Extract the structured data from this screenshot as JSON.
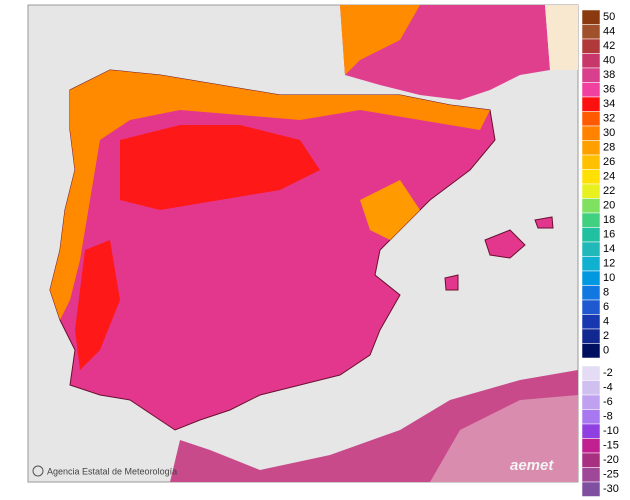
{
  "map": {
    "credit": "Agencia Estatal de Meteorología",
    "logo": "aemet",
    "legend": [
      {
        "value": 50,
        "color": "#8b3a10"
      },
      {
        "value": 44,
        "color": "#a0502a"
      },
      {
        "value": 42,
        "color": "#b03a3a"
      },
      {
        "value": 40,
        "color": "#c8376a"
      },
      {
        "value": 38,
        "color": "#d83f8c"
      },
      {
        "value": 36,
        "color": "#f040a0"
      },
      {
        "value": 34,
        "color": "#ff1010"
      },
      {
        "value": 32,
        "color": "#ff5a00"
      },
      {
        "value": 30,
        "color": "#ff8200"
      },
      {
        "value": 28,
        "color": "#ffa000"
      },
      {
        "value": 26,
        "color": "#ffc000"
      },
      {
        "value": 24,
        "color": "#ffe000"
      },
      {
        "value": 22,
        "color": "#e8f020"
      },
      {
        "value": 20,
        "color": "#80e060"
      },
      {
        "value": 18,
        "color": "#40d080"
      },
      {
        "value": 16,
        "color": "#20c0a0"
      },
      {
        "value": 14,
        "color": "#20b8b8"
      },
      {
        "value": 12,
        "color": "#10b0d0"
      },
      {
        "value": 10,
        "color": "#0098e0"
      },
      {
        "value": 8,
        "color": "#1078e0"
      },
      {
        "value": 6,
        "color": "#2058d0"
      },
      {
        "value": 4,
        "color": "#1838b0"
      },
      {
        "value": 2,
        "color": "#102890"
      },
      {
        "value": 0,
        "color": "#001060"
      },
      {
        "value": -2,
        "color": "#e4dcf4"
      },
      {
        "value": -4,
        "color": "#d0c0f0"
      },
      {
        "value": -6,
        "color": "#c0a0f0"
      },
      {
        "value": -8,
        "color": "#a878f0"
      },
      {
        "value": -10,
        "color": "#9040e0"
      },
      {
        "value": -15,
        "color": "#c02090"
      },
      {
        "value": -20,
        "color": "#a83080"
      },
      {
        "value": -25,
        "color": "#a04898"
      },
      {
        "value": -30,
        "color": "#8050a0"
      }
    ]
  }
}
